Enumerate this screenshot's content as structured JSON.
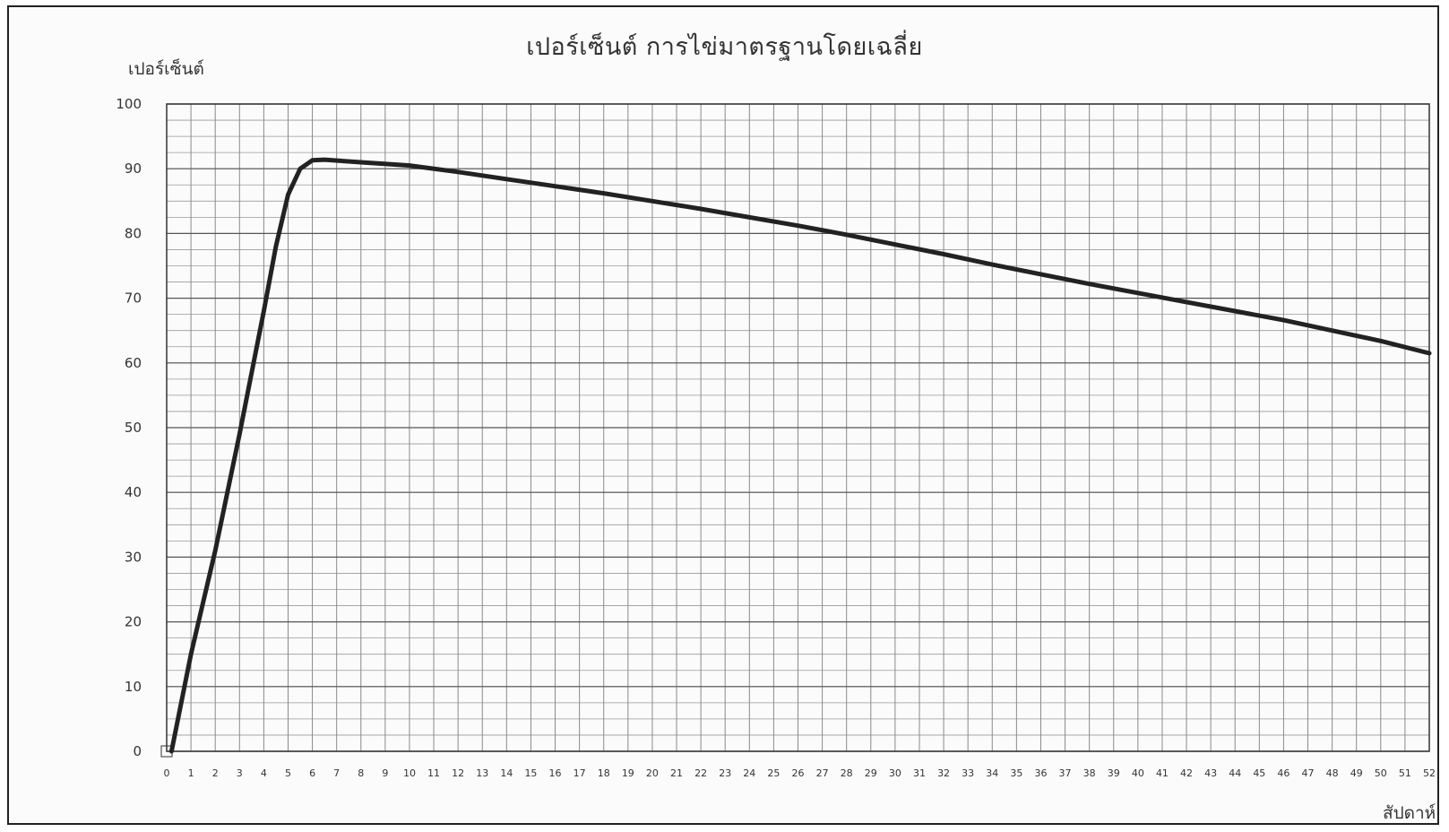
{
  "chart_data": {
    "type": "line",
    "title": "เปอร์เซ็นต์ การไข่มาตรฐานโดยเฉลี่ย",
    "ylabel": "เปอร์เซ็นต์",
    "xlabel": "สัปดาห์",
    "xlim": [
      0,
      52
    ],
    "ylim": [
      0,
      100
    ],
    "x_ticks": [
      0,
      1,
      2,
      3,
      4,
      5,
      6,
      7,
      8,
      9,
      10,
      11,
      12,
      13,
      14,
      15,
      16,
      17,
      18,
      19,
      20,
      21,
      22,
      23,
      24,
      25,
      26,
      27,
      28,
      29,
      30,
      31,
      32,
      33,
      34,
      35,
      36,
      37,
      38,
      39,
      40,
      41,
      42,
      43,
      44,
      45,
      46,
      47,
      48,
      49,
      50,
      51,
      52
    ],
    "y_ticks": [
      0,
      10,
      20,
      30,
      40,
      50,
      60,
      70,
      80,
      90,
      100
    ],
    "grid": true,
    "series": [
      {
        "x": [
          0.2,
          1,
          2,
          3,
          4,
          4.5,
          5,
          5.5,
          6,
          6.5,
          8,
          10,
          12,
          14,
          16,
          18,
          20,
          22,
          24,
          26,
          28,
          30,
          32,
          34,
          36,
          38,
          40,
          42,
          44,
          46,
          48,
          50,
          52
        ],
        "y": [
          0,
          15,
          31,
          49,
          68,
          78,
          86,
          90,
          91.3,
          91.4,
          91,
          90.5,
          89.5,
          88.4,
          87.3,
          86.2,
          85,
          83.8,
          82.5,
          81.2,
          79.8,
          78.3,
          76.8,
          75.2,
          73.7,
          72.2,
          70.8,
          69.4,
          68,
          66.6,
          65,
          63.4,
          61.5
        ],
        "color": "#222222"
      }
    ]
  }
}
